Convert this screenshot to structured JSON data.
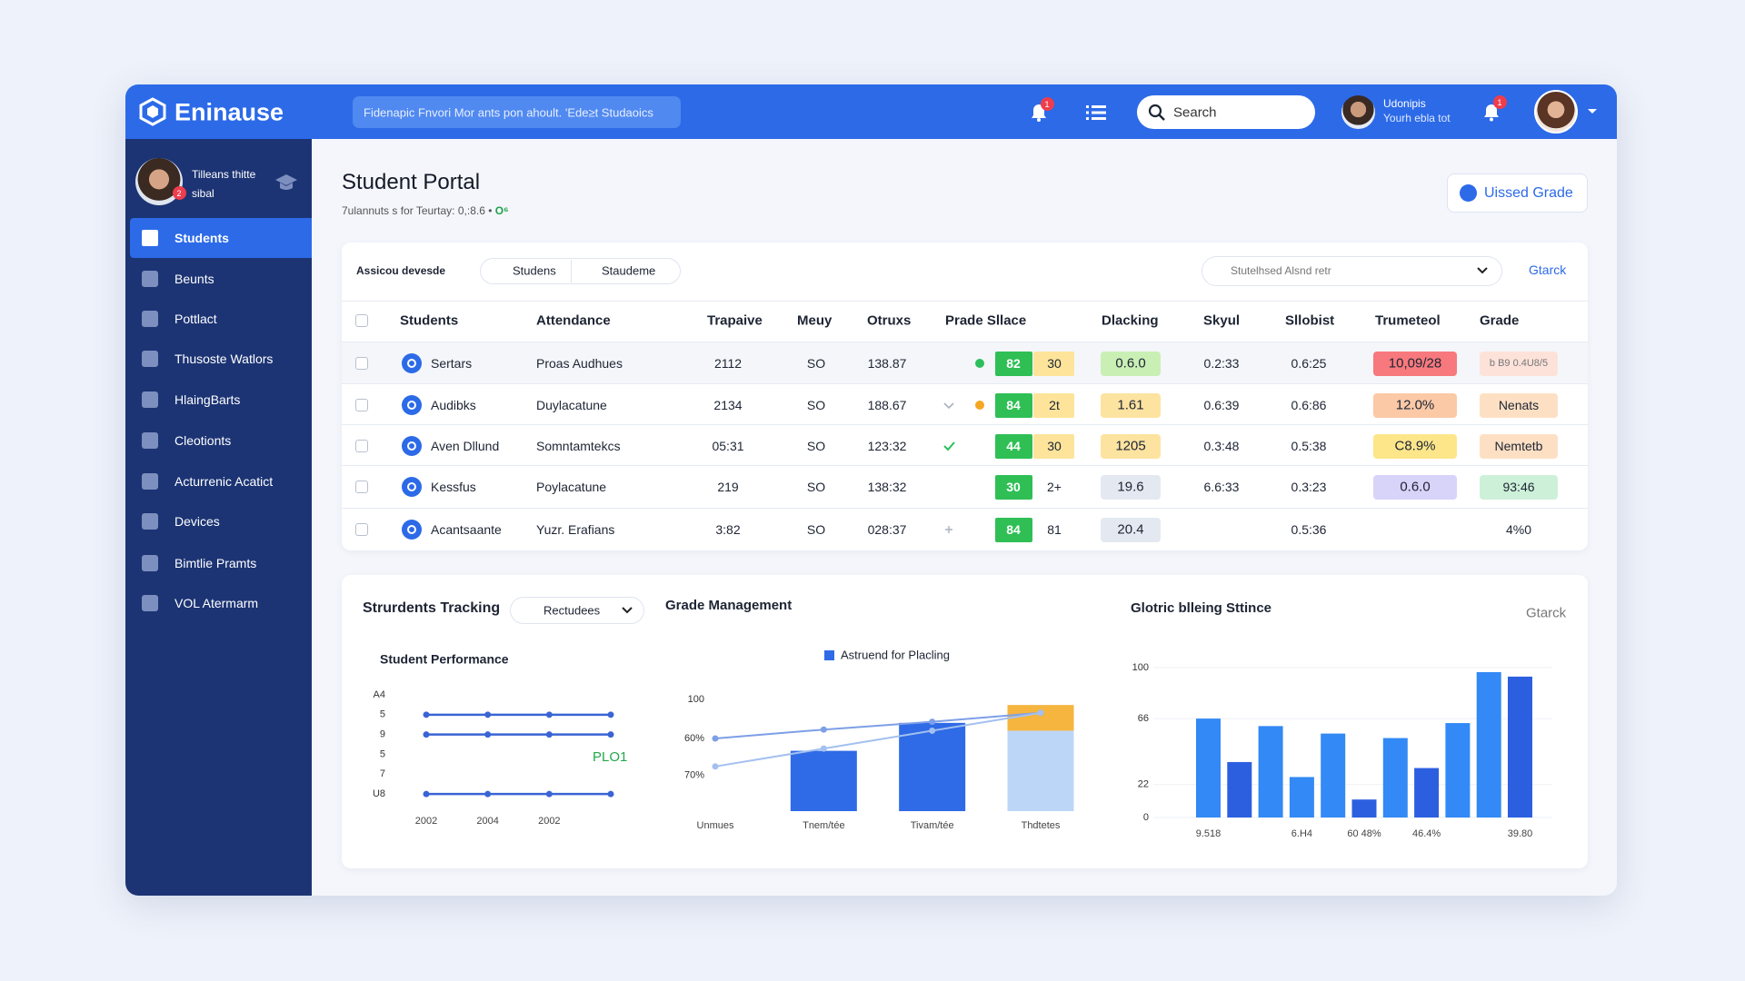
{
  "header": {
    "brand": "Eninause",
    "banner": "Fidenapic Fnvori Mor ants pon ahoult. 'Ede≥t Studaoics",
    "bell_badge": "1",
    "search": "Search",
    "user_name": "Udonipis",
    "user_sub": "Yourh ebla tot",
    "alert_badge": "1"
  },
  "sidebar": {
    "profile_name": "Tilleans thitte",
    "profile_sub": "sibal",
    "profile_badge": "2",
    "items": [
      "Students",
      "Beunts",
      "Pottlact",
      "Thusoste Watlors",
      "HlaingBarts",
      "Cleotionts",
      "Acturrenic Acatict",
      "Devices",
      "Bimtlie Pramts",
      "VOL Atermarm"
    ]
  },
  "page": {
    "title": "Student Portal",
    "subtitle": "7ulannuts s for Teurtay: 0,:8.6 •",
    "subtitle_accent": "O⁶",
    "action": "Uissed Grade"
  },
  "table": {
    "toolbar_label": "Assicou devesde",
    "chips": [
      "Studens",
      "Staudeme"
    ],
    "filter": "Stutelhsed Alsnd retr",
    "link": "Gtarck",
    "columns": [
      "Students",
      "Attendance",
      "Trapaive",
      "Meuy",
      "Otruxs",
      "Prade Sllace",
      "Dlacking",
      "Skyul",
      "Sllobist",
      "Trumeteol",
      "Grade"
    ],
    "rows": [
      [
        "Sertars",
        "Proas Audhues",
        "2112",
        "SO",
        "138.87",
        [
          "82",
          "30"
        ],
        "0.6.0",
        "0.2:33",
        "0.6:25",
        "10,09/28",
        "b B9 0.4U8/5"
      ],
      [
        "Audibks",
        "Duylacatune",
        "2134",
        "SO",
        "188.67",
        [
          "84",
          "2t"
        ],
        "1.61",
        "0.6:39",
        "0.6:86",
        "12.0%",
        "Nenats"
      ],
      [
        "Aven Dllund",
        "Somntamtekcs",
        "05:31",
        "SO",
        "123:32",
        [
          "44",
          "30"
        ],
        "1205",
        "0.3:48",
        "0.5:38",
        "C8.9%",
        "Nemtetb"
      ],
      [
        "Kessfus",
        "Poylacatune",
        "219",
        "SO",
        "138:32",
        [
          "30",
          "2+"
        ],
        "19.6",
        "6.6:33",
        "0.3:23",
        "0.6.0",
        "93:46"
      ],
      [
        "Acantsaante",
        "Yuzr. Erafians",
        "3:82",
        "SO",
        "028:37",
        [
          "84",
          "81"
        ],
        "20.4",
        "",
        "0.5:36",
        "",
        "4%0"
      ]
    ]
  },
  "tracking": {
    "title": "Strurdents Tracking",
    "dropdown": "Rectudees",
    "link": "Gtarck"
  },
  "chart_data": [
    {
      "type": "line",
      "title": "Student Performance",
      "categories": [
        "2002",
        "2004",
        "2002",
        null
      ],
      "ylim": [
        0,
        6
      ],
      "yticks": [
        {
          "value": 6,
          "label": "A4"
        },
        5,
        {
          "value": 4,
          "label": "9"
        },
        {
          "value": 3,
          "label": "5"
        },
        {
          "value": 2,
          "label": "7"
        },
        {
          "value": 1,
          "label": "U8"
        }
      ],
      "grid": false,
      "annotation": "PLO1",
      "series": [
        {
          "color": "#3a64d4",
          "values": [
            5,
            5,
            5,
            5
          ]
        },
        {
          "color": "#3a64d4",
          "values": [
            4,
            4,
            4,
            4
          ]
        },
        {
          "color": "#3a64d4",
          "values": [
            1,
            1,
            1,
            1
          ]
        }
      ]
    },
    {
      "type": "combo",
      "title": "Grade Management",
      "categories": [
        "Unmues",
        "Tnem/tée",
        "Tivam/tée",
        "Thdtetes"
      ],
      "ylim": [
        0,
        100
      ],
      "yticks": [
        100,
        {
          "value": 65,
          "label": "60%"
        },
        {
          "value": 32,
          "label": "70%"
        }
      ],
      "grid": false,
      "series": [
        {
          "name": "Astruend for Placling",
          "type": "bar",
          "color": "#2f6be6",
          "colors": [
            "#2f6be6",
            "#2f6be6",
            "#2f6be6",
            "#bcd6f7"
          ],
          "values": [
            null,
            54,
            79,
            72
          ]
        },
        {
          "type": "bar",
          "color": "#f5b53e",
          "values": [
            null,
            null,
            null,
            23
          ]
        },
        {
          "type": "line",
          "color": "#7d9fe6",
          "values": [
            65,
            73,
            80,
            88
          ]
        },
        {
          "type": "line",
          "color": "#a3c0f0",
          "values": [
            40,
            56,
            72,
            88
          ]
        }
      ]
    },
    {
      "type": "bar",
      "title": "Glotric blleing Sttince",
      "link": "Gtarck",
      "categories": [
        "9.518",
        null,
        null,
        "6.H4",
        null,
        "60 48%",
        null,
        "46.4%",
        null,
        null,
        "39.80"
      ],
      "values": [
        66,
        37,
        61,
        27,
        56,
        12,
        53,
        33,
        63,
        97,
        94
      ],
      "colors": [
        "#3389f5",
        "#2c5fe0",
        "#3389f5",
        "#3389f5",
        "#3389f5",
        "#2c5fe0",
        "#3389f5",
        "#2c5fe0",
        "#3389f5",
        "#3389f5",
        "#2c5fe0"
      ],
      "ylim": [
        0,
        100
      ],
      "yticks": [
        100,
        66,
        22,
        0
      ],
      "grid": true
    }
  ]
}
